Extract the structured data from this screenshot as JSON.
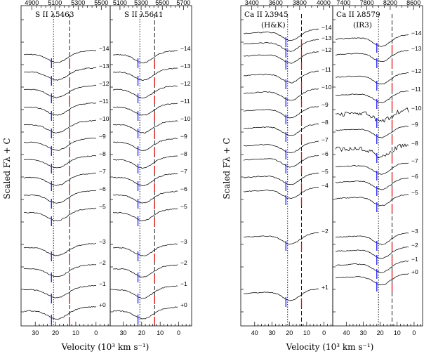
{
  "ylabel": "Scaled Fλ + C",
  "xlabel": "Velocity (10³ km s⁻¹)",
  "colors": {
    "blue_marker": "#1a1aff",
    "red_marker": "#e01010",
    "line": "#000000"
  },
  "chart_data": [
    {
      "type": "line",
      "title": "S II λ5463",
      "top_wavelength_ticks": [
        "4900",
        "5100",
        "5300",
        "5500"
      ],
      "velocity_ticks": [
        "30",
        "20",
        "10",
        "0"
      ],
      "xlim": [
        37,
        -7
      ],
      "epochs_upper": [
        "−14",
        "−13",
        "−12",
        "−11",
        "−10",
        "−9",
        "−8",
        "−7",
        "−6",
        "−5"
      ],
      "epochs_lower": [
        "−3",
        "−2",
        "−1",
        "+0"
      ],
      "dotted_velocity": 21,
      "dashed_velocity": 13,
      "blue_marker_velocity": 21,
      "red_marker_velocity": 13
    },
    {
      "type": "line",
      "title": "S II λ5641",
      "top_wavelength_ticks": [
        "5100",
        "5300",
        "5500",
        "5700"
      ],
      "velocity_ticks": [
        "30",
        "20",
        "10",
        "0"
      ],
      "xlim": [
        37,
        -7
      ],
      "epochs_upper": [
        "−14",
        "−13",
        "−12",
        "−11",
        "−10",
        "−9",
        "−8",
        "−7",
        "−6",
        "−5"
      ],
      "epochs_lower": [
        "−3",
        "−2",
        "−1",
        "+0"
      ],
      "dotted_velocity": 21,
      "dashed_velocity": 13,
      "blue_marker_velocity": 21,
      "red_marker_velocity": 13
    },
    {
      "type": "line",
      "title": "Ca II λ3945",
      "subtitle": "(H&K)",
      "top_wavelength_ticks": [
        "3400",
        "3600",
        "3800",
        "4000"
      ],
      "velocity_ticks": [
        "40",
        "30",
        "20",
        "10",
        "0"
      ],
      "xlim": [
        48,
        -5
      ],
      "epochs": [
        "−14",
        "−13",
        "−12",
        "−11",
        "−10",
        "−9",
        "−8",
        "−7",
        "−6",
        "−5",
        "−4",
        "−2",
        "+1"
      ],
      "dotted_velocity": 21,
      "dashed_velocity": 13,
      "blue_marker_velocity": 21,
      "red_marker_velocity": 13
    },
    {
      "type": "line",
      "title": "Ca II λ8579",
      "subtitle": "(IR3)",
      "top_wavelength_ticks": [
        "7400",
        "7800",
        "8200",
        "8600"
      ],
      "velocity_ticks": [
        "40",
        "30",
        "20",
        "10",
        "0"
      ],
      "xlim": [
        48,
        -5
      ],
      "epochs": [
        "−14",
        "−13",
        "−12",
        "−11",
        "−10",
        "−9",
        "−8",
        "−7",
        "−6",
        "−5",
        "−3",
        "−2",
        "−1",
        "+0"
      ],
      "dotted_velocity": 21,
      "dashed_velocity": 13,
      "blue_marker_velocity": 21,
      "red_marker_velocity": 13
    }
  ]
}
